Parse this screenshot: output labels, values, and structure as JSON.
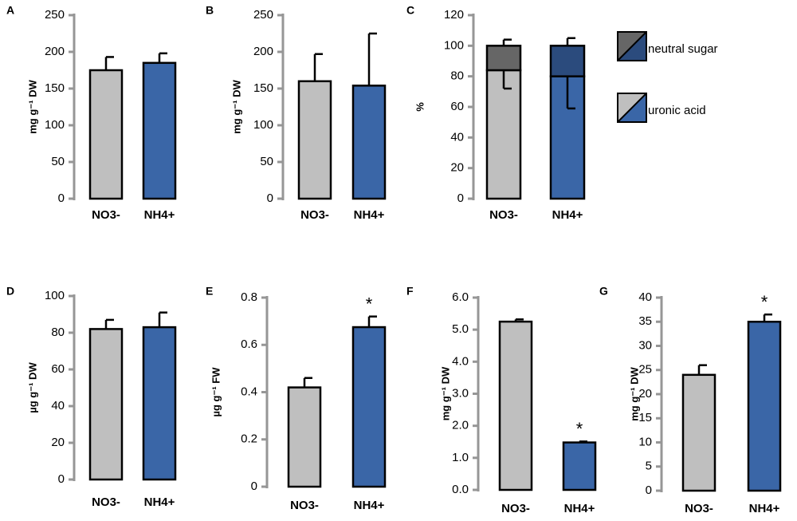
{
  "chart_data": [
    {
      "type": "bar",
      "label": "A",
      "ylabel": "mg g⁻¹ DW",
      "categories": [
        "NO3-",
        "NH4+"
      ],
      "values": [
        175,
        185
      ],
      "errors": [
        18,
        13
      ],
      "colors": [
        "#bfbfbf",
        "#3a66a7"
      ],
      "ylim": [
        0,
        250
      ],
      "yticks": [
        0,
        50,
        100,
        150,
        200,
        250
      ]
    },
    {
      "type": "bar",
      "label": "B",
      "ylabel": "mg g⁻¹ DW",
      "categories": [
        "NO3-",
        "NH4+"
      ],
      "values": [
        160,
        154
      ],
      "errors": [
        37,
        71
      ],
      "colors": [
        "#bfbfbf",
        "#3a66a7"
      ],
      "ylim": [
        0,
        250
      ],
      "yticks": [
        0,
        50,
        100,
        150,
        200,
        250
      ]
    },
    {
      "type": "stacked_bar",
      "label": "C",
      "ylabel": "%",
      "categories": [
        "NO3-",
        "NH4+"
      ],
      "series": [
        {
          "name": "uronic acid",
          "colors": [
            "#bfbfbf",
            "#3a66a7"
          ],
          "values": [
            84,
            80
          ],
          "errors": [
            12,
            21
          ]
        },
        {
          "name": "neutral sugar",
          "colors": [
            "#666666",
            "#2b4b7d"
          ],
          "values": [
            16,
            20
          ],
          "errors": [
            4,
            5
          ]
        }
      ],
      "ylim": [
        0,
        120
      ],
      "yticks": [
        0,
        20,
        40,
        60,
        80,
        100,
        120
      ]
    },
    {
      "type": "bar",
      "label": "D",
      "ylabel": "µg g⁻¹ DW",
      "categories": [
        "NO3-",
        "NH4+"
      ],
      "values": [
        82,
        83
      ],
      "errors": [
        5,
        8
      ],
      "colors": [
        "#bfbfbf",
        "#3a66a7"
      ],
      "ylim": [
        0,
        100
      ],
      "yticks": [
        0,
        20,
        40,
        60,
        80,
        100
      ]
    },
    {
      "type": "bar",
      "label": "E",
      "ylabel": "µg g⁻¹ FW",
      "categories": [
        "NO3-",
        "NH4+"
      ],
      "values": [
        0.42,
        0.675
      ],
      "errors": [
        0.04,
        0.045
      ],
      "colors": [
        "#bfbfbf",
        "#3a66a7"
      ],
      "ylim": [
        0,
        0.8
      ],
      "yticks": [
        0,
        0.2,
        0.4,
        0.6,
        0.8
      ],
      "annotation": {
        "text": "*",
        "category": "NH4+"
      }
    },
    {
      "type": "bar",
      "label": "F",
      "ylabel": "mg g⁻¹ DW",
      "categories": [
        "NO3-",
        "NH4+"
      ],
      "values": [
        5.25,
        1.48
      ],
      "errors": [
        0.07,
        0.03
      ],
      "colors": [
        "#bfbfbf",
        "#3a66a7"
      ],
      "ylim": [
        0,
        6
      ],
      "yticks": [
        {
          "value": 0,
          "label": "0.0"
        },
        {
          "value": 1,
          "label": "1.0"
        },
        {
          "value": 2,
          "label": "2.0"
        },
        {
          "value": 3,
          "label": "3.0"
        },
        {
          "value": 4,
          "label": "4.0"
        },
        {
          "value": 5,
          "label": "5.0"
        },
        {
          "value": 6,
          "label": "6.0"
        }
      ],
      "annotation": {
        "text": "*",
        "category": "NH4+"
      }
    },
    {
      "type": "bar",
      "label": "G",
      "ylabel": "mg g⁻¹ DW",
      "categories": [
        "NO3-",
        "NH4+"
      ],
      "values": [
        24,
        35
      ],
      "errors": [
        2,
        1.5
      ],
      "colors": [
        "#bfbfbf",
        "#3a66a7"
      ],
      "ylim": [
        0,
        40
      ],
      "yticks": [
        0,
        5,
        10,
        15,
        20,
        25,
        30,
        35,
        40
      ],
      "annotation": {
        "text": "*",
        "category": "NH4+"
      }
    }
  ]
}
